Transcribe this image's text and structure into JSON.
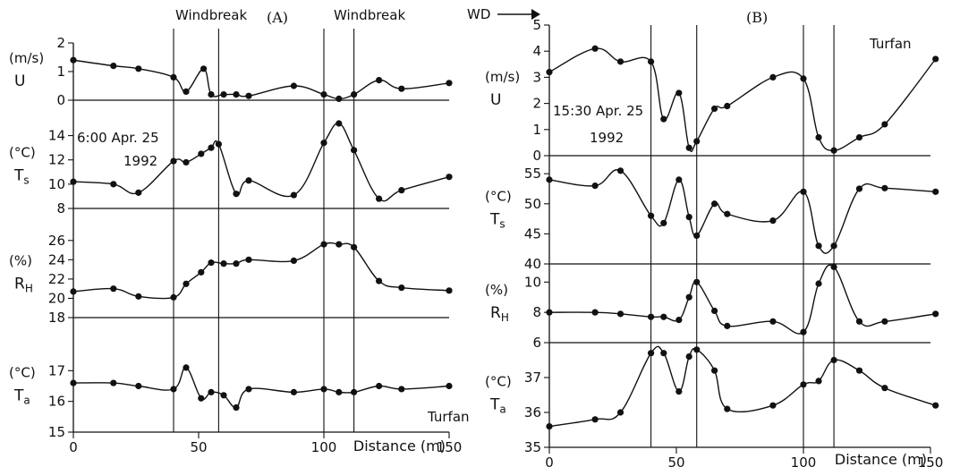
{
  "header": {
    "wd_label": "WD"
  },
  "chart_data": [
    {
      "type": "line",
      "panel_label": "(A)",
      "annotations": [
        "Windbreak",
        "Windbreak",
        "6:00 Apr. 25",
        "1992",
        "Turfan"
      ],
      "windbreak_positions": [
        40,
        58,
        100,
        112
      ],
      "xlabel": "Distance (m)",
      "xlim": [
        0,
        150
      ],
      "x_ticks": [
        0,
        50,
        100,
        150
      ],
      "subplots": [
        {
          "var": "U",
          "unit": "(m/s)",
          "ylim": [
            0,
            2
          ],
          "y_ticks": [
            0,
            1,
            2
          ],
          "x": [
            0,
            16,
            26,
            40,
            45,
            52,
            55,
            60,
            65,
            70,
            88,
            100,
            106,
            112,
            122,
            131,
            150
          ],
          "y": [
            1.4,
            1.2,
            1.1,
            0.8,
            0.3,
            1.1,
            0.2,
            0.2,
            0.2,
            0.15,
            0.5,
            0.2,
            0.05,
            0.2,
            0.7,
            0.4,
            0.6
          ]
        },
        {
          "var": "Ts",
          "unit": "(°C)",
          "ylim": [
            8,
            15
          ],
          "y_ticks": [
            8,
            10,
            12,
            14
          ],
          "x": [
            0,
            16,
            26,
            40,
            45,
            51,
            55,
            58,
            65,
            70,
            88,
            100,
            106,
            112,
            122,
            131,
            150
          ],
          "y": [
            10.2,
            10.0,
            9.3,
            11.9,
            11.8,
            12.5,
            13.0,
            13.3,
            9.2,
            10.3,
            9.1,
            13.4,
            15.0,
            12.8,
            8.8,
            9.5,
            10.6
          ]
        },
        {
          "var": "RH",
          "unit": "(%)",
          "ylim": [
            18,
            27
          ],
          "y_ticks": [
            18,
            20,
            22,
            24,
            26
          ],
          "x": [
            0,
            16,
            26,
            40,
            45,
            51,
            55,
            60,
            65,
            70,
            88,
            100,
            106,
            112,
            122,
            131,
            150
          ],
          "y": [
            20.7,
            21.0,
            20.2,
            20.1,
            21.5,
            22.7,
            23.7,
            23.6,
            23.6,
            24.0,
            23.9,
            25.6,
            25.6,
            25.3,
            21.8,
            21.1,
            20.8
          ]
        },
        {
          "var": "Ta",
          "unit": "(°C)",
          "ylim": [
            15,
            18
          ],
          "y_ticks": [
            15,
            16,
            17
          ],
          "x": [
            0,
            16,
            26,
            40,
            45,
            51,
            55,
            60,
            65,
            70,
            88,
            100,
            106,
            112,
            122,
            131,
            150
          ],
          "y": [
            16.6,
            16.6,
            16.5,
            16.4,
            17.1,
            16.1,
            16.3,
            16.2,
            15.8,
            16.4,
            16.3,
            16.4,
            16.3,
            16.3,
            16.5,
            16.4,
            16.5
          ]
        }
      ]
    },
    {
      "type": "line",
      "panel_label": "(B)",
      "annotations": [
        "Turfan",
        "15:30 Apr. 25",
        "1992"
      ],
      "windbreak_positions": [
        40,
        58,
        100,
        112
      ],
      "xlabel": "Distance (m)",
      "xlim": [
        0,
        150
      ],
      "x_ticks": [
        0,
        50,
        100,
        150
      ],
      "subplots": [
        {
          "var": "U",
          "unit": "(m/s)",
          "ylim": [
            0,
            5
          ],
          "y_ticks": [
            0,
            1,
            2,
            3,
            4,
            5
          ],
          "x": [
            0,
            18,
            28,
            40,
            45,
            51,
            55,
            58,
            65,
            70,
            88,
            100,
            106,
            112,
            122,
            132,
            152
          ],
          "y": [
            3.2,
            4.1,
            3.6,
            3.6,
            1.4,
            2.4,
            0.3,
            0.55,
            1.8,
            1.9,
            3.0,
            2.95,
            0.7,
            0.2,
            0.7,
            1.2,
            3.7
          ]
        },
        {
          "var": "Ts",
          "unit": "(°C)",
          "ylim": [
            40,
            58
          ],
          "y_ticks": [
            40,
            45,
            50,
            55
          ],
          "x": [
            0,
            18,
            28,
            40,
            45,
            51,
            55,
            58,
            65,
            70,
            88,
            100,
            106,
            112,
            122,
            132,
            152
          ],
          "y": [
            54.0,
            53.0,
            55.5,
            48.0,
            46.8,
            54.0,
            47.8,
            44.7,
            50.0,
            48.3,
            47.2,
            52.0,
            43.0,
            43.0,
            52.5,
            52.6,
            52.0
          ]
        },
        {
          "var": "RH",
          "unit": "(%)",
          "ylim": [
            6,
            11.2
          ],
          "y_ticks": [
            6,
            8,
            10
          ],
          "x": [
            0,
            18,
            28,
            40,
            45,
            51,
            55,
            58,
            65,
            70,
            88,
            100,
            106,
            112,
            122,
            132,
            152
          ],
          "y": [
            8.0,
            8.0,
            7.9,
            7.7,
            7.7,
            7.5,
            9.0,
            10.0,
            8.1,
            7.1,
            7.4,
            6.7,
            9.9,
            11.0,
            7.4,
            7.4,
            7.9
          ]
        },
        {
          "var": "Ta",
          "unit": "(°C)",
          "ylim": [
            35,
            38
          ],
          "y_ticks": [
            35,
            36,
            37
          ],
          "x": [
            0,
            18,
            28,
            40,
            45,
            51,
            55,
            58,
            65,
            70,
            88,
            100,
            106,
            112,
            122,
            132,
            152
          ],
          "y": [
            35.6,
            35.8,
            36.0,
            37.7,
            37.7,
            36.6,
            37.6,
            37.8,
            37.2,
            36.1,
            36.2,
            36.8,
            36.9,
            37.5,
            37.2,
            36.7,
            36.2
          ]
        }
      ]
    }
  ]
}
